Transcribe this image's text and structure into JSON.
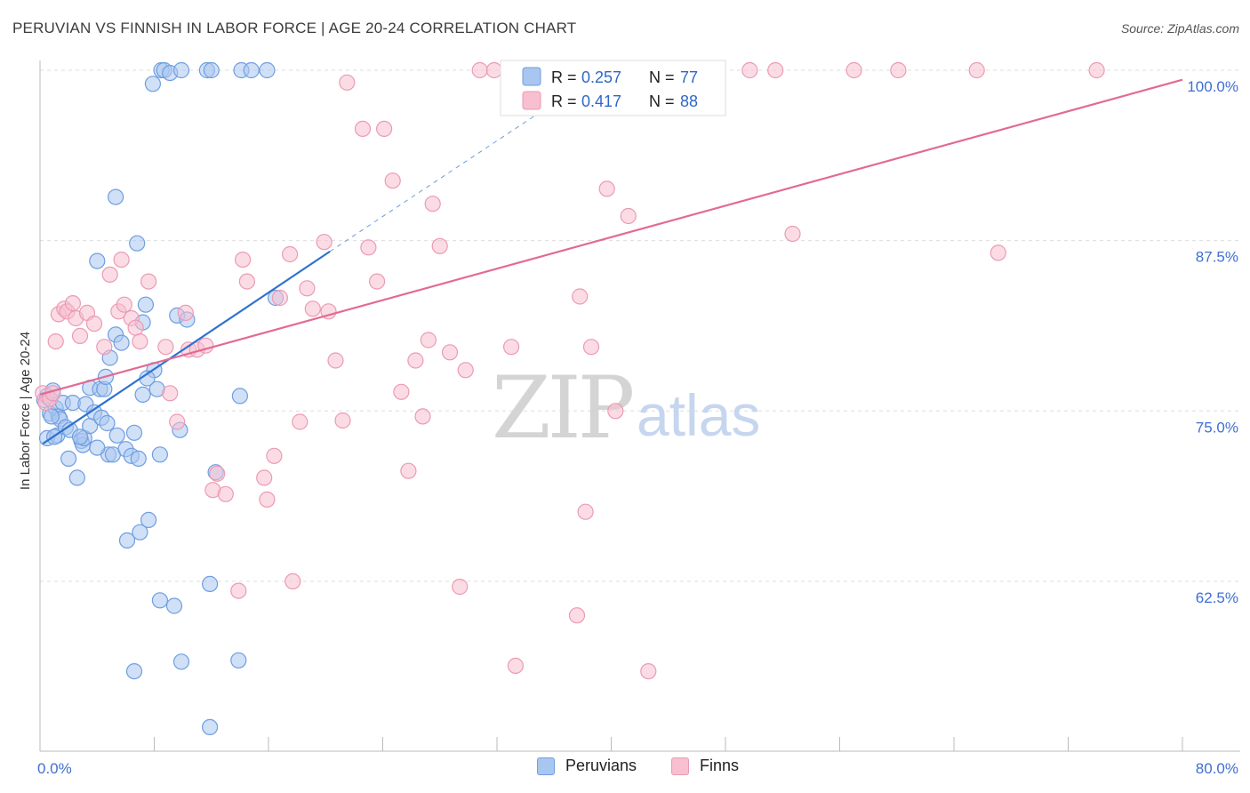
{
  "title": "PERUVIAN VS FINNISH IN LABOR FORCE | AGE 20-24 CORRELATION CHART",
  "source": "Source: ZipAtlas.com",
  "watermark": {
    "zip": "ZIP",
    "atlas": "atlas"
  },
  "legend_top": [
    {
      "r_label": "R =",
      "r_value": "0.257",
      "n_label": "N =",
      "n_value": "77"
    },
    {
      "r_label": "R =",
      "r_value": "0.417",
      "n_label": "N =",
      "n_value": "88"
    }
  ],
  "legend_bottom": [
    {
      "label": "Peruvians"
    },
    {
      "label": "Finns"
    }
  ],
  "colors": {
    "peruvian_fill": "#a9c6f0",
    "peruvian_stroke": "#6f9ee0",
    "peruvian_line": "#2f72d0",
    "finn_fill": "#f7bfd0",
    "finn_stroke": "#eb9ab5",
    "finn_line": "#e26a92",
    "tick": "#3f6fd0",
    "grid": "#dddddd"
  },
  "chart_data": {
    "type": "scatter",
    "title": "PERUVIAN VS FINNISH IN LABOR FORCE | AGE 20-24 CORRELATION CHART",
    "xlabel": "",
    "ylabel": "In Labor Force | Age 20-24",
    "xlim": [
      0,
      80
    ],
    "ylim": [
      51.8,
      101.5
    ],
    "x_tick_labels": [
      "0.0%",
      "80.0%"
    ],
    "y_ticks": [
      62.5,
      75.0,
      87.5,
      100.0
    ],
    "y_tick_labels": [
      "62.5%",
      "75.0%",
      "87.5%",
      "100.0%"
    ],
    "grid": true,
    "series": [
      {
        "name": "Peruvians",
        "r": 0.257,
        "n": 77,
        "trend": {
          "x0": 0.2,
          "y0": 72.6,
          "x1": 20.3,
          "y1": 86.7,
          "dash_to_x": 36.0,
          "dash_to_y": 97.6
        },
        "points": [
          [
            0.3,
            75.8
          ],
          [
            0.5,
            76.1
          ],
          [
            0.5,
            73.0
          ],
          [
            0.7,
            74.8
          ],
          [
            0.9,
            76.5
          ],
          [
            1.1,
            75.2
          ],
          [
            1.2,
            73.2
          ],
          [
            1.3,
            74.6
          ],
          [
            1.4,
            74.4
          ],
          [
            1.6,
            75.6
          ],
          [
            1.8,
            73.8
          ],
          [
            2.0,
            71.5
          ],
          [
            2.1,
            73.6
          ],
          [
            2.3,
            75.6
          ],
          [
            2.6,
            70.1
          ],
          [
            2.9,
            72.8
          ],
          [
            3.0,
            72.5
          ],
          [
            3.1,
            73.0
          ],
          [
            3.2,
            75.5
          ],
          [
            3.5,
            73.9
          ],
          [
            3.5,
            76.7
          ],
          [
            3.8,
            74.9
          ],
          [
            4.0,
            86.0
          ],
          [
            4.2,
            76.6
          ],
          [
            4.3,
            74.5
          ],
          [
            4.5,
            76.6
          ],
          [
            4.6,
            77.5
          ],
          [
            4.7,
            74.1
          ],
          [
            4.8,
            71.8
          ],
          [
            4.9,
            78.9
          ],
          [
            5.1,
            71.8
          ],
          [
            5.3,
            80.6
          ],
          [
            5.3,
            90.7
          ],
          [
            5.4,
            73.2
          ],
          [
            5.7,
            80.0
          ],
          [
            6.0,
            72.2
          ],
          [
            6.1,
            65.5
          ],
          [
            6.4,
            71.7
          ],
          [
            6.6,
            73.4
          ],
          [
            6.8,
            87.3
          ],
          [
            6.9,
            71.5
          ],
          [
            7.0,
            66.1
          ],
          [
            7.2,
            76.2
          ],
          [
            7.2,
            81.5
          ],
          [
            7.4,
            82.8
          ],
          [
            7.6,
            67.0
          ],
          [
            7.9,
            99.0
          ],
          [
            8.0,
            78.0
          ],
          [
            8.2,
            76.6
          ],
          [
            8.4,
            71.8
          ],
          [
            8.4,
            61.1
          ],
          [
            8.5,
            100.0
          ],
          [
            8.7,
            100.0
          ],
          [
            9.1,
            99.8
          ],
          [
            9.4,
            60.7
          ],
          [
            9.6,
            82.0
          ],
          [
            9.8,
            73.6
          ],
          [
            9.9,
            56.6
          ],
          [
            9.9,
            100.0
          ],
          [
            10.3,
            81.7
          ],
          [
            11.7,
            100.0
          ],
          [
            11.9,
            62.3
          ],
          [
            12.0,
            100.0
          ],
          [
            12.3,
            70.5
          ],
          [
            13.9,
            56.7
          ],
          [
            14.0,
            76.1
          ],
          [
            14.1,
            100.0
          ],
          [
            14.8,
            100.0
          ],
          [
            15.9,
            100.0
          ],
          [
            16.5,
            83.3
          ],
          [
            6.6,
            55.9
          ],
          [
            11.9,
            51.8
          ],
          [
            0.8,
            74.6
          ],
          [
            1.0,
            73.1
          ],
          [
            2.8,
            73.1
          ],
          [
            4.0,
            72.3
          ],
          [
            7.5,
            77.4
          ]
        ]
      },
      {
        "name": "Finns",
        "r": 0.417,
        "n": 88,
        "trend": {
          "x0": 0.0,
          "y0": 76.2,
          "x1": 80.0,
          "y1": 99.3
        },
        "points": [
          [
            0.2,
            76.3
          ],
          [
            0.4,
            75.6
          ],
          [
            0.7,
            75.9
          ],
          [
            0.9,
            76.3
          ],
          [
            1.1,
            80.1
          ],
          [
            1.3,
            82.1
          ],
          [
            1.7,
            82.5
          ],
          [
            1.9,
            82.3
          ],
          [
            2.3,
            82.9
          ],
          [
            2.5,
            81.8
          ],
          [
            2.8,
            80.5
          ],
          [
            3.3,
            82.2
          ],
          [
            3.8,
            81.4
          ],
          [
            4.5,
            79.7
          ],
          [
            4.9,
            85.0
          ],
          [
            5.5,
            82.3
          ],
          [
            5.7,
            86.1
          ],
          [
            5.9,
            82.8
          ],
          [
            6.4,
            81.8
          ],
          [
            6.7,
            81.1
          ],
          [
            7.0,
            80.1
          ],
          [
            7.6,
            84.5
          ],
          [
            8.8,
            79.7
          ],
          [
            9.1,
            76.3
          ],
          [
            9.6,
            74.2
          ],
          [
            10.2,
            82.2
          ],
          [
            10.4,
            79.5
          ],
          [
            11.0,
            79.5
          ],
          [
            11.6,
            79.8
          ],
          [
            12.1,
            69.2
          ],
          [
            12.4,
            70.4
          ],
          [
            13.0,
            68.9
          ],
          [
            13.9,
            61.8
          ],
          [
            14.2,
            86.1
          ],
          [
            14.5,
            84.5
          ],
          [
            15.7,
            70.1
          ],
          [
            15.9,
            68.5
          ],
          [
            16.4,
            71.7
          ],
          [
            16.8,
            83.3
          ],
          [
            17.5,
            86.5
          ],
          [
            17.7,
            62.5
          ],
          [
            18.2,
            74.2
          ],
          [
            18.7,
            84.0
          ],
          [
            19.1,
            82.5
          ],
          [
            19.9,
            87.4
          ],
          [
            20.2,
            82.3
          ],
          [
            20.7,
            78.7
          ],
          [
            21.2,
            74.3
          ],
          [
            21.5,
            99.1
          ],
          [
            22.6,
            95.7
          ],
          [
            23.0,
            87.0
          ],
          [
            23.6,
            84.5
          ],
          [
            24.1,
            95.7
          ],
          [
            24.7,
            91.9
          ],
          [
            25.3,
            76.4
          ],
          [
            25.8,
            70.6
          ],
          [
            26.3,
            78.7
          ],
          [
            26.8,
            74.6
          ],
          [
            27.2,
            80.2
          ],
          [
            27.5,
            90.2
          ],
          [
            28.0,
            87.1
          ],
          [
            28.7,
            79.3
          ],
          [
            29.4,
            62.1
          ],
          [
            29.8,
            78.0
          ],
          [
            30.8,
            100.0
          ],
          [
            31.8,
            100.0
          ],
          [
            33.0,
            79.7
          ],
          [
            33.3,
            56.3
          ],
          [
            34.6,
            100.0
          ],
          [
            35.8,
            100.0
          ],
          [
            37.6,
            60.0
          ],
          [
            37.8,
            83.4
          ],
          [
            38.2,
            67.6
          ],
          [
            38.6,
            79.7
          ],
          [
            39.7,
            91.3
          ],
          [
            40.3,
            75.0
          ],
          [
            41.2,
            89.3
          ],
          [
            42.6,
            55.9
          ],
          [
            43.4,
            100.0
          ],
          [
            44.0,
            100.0
          ],
          [
            49.7,
            100.0
          ],
          [
            51.5,
            100.0
          ],
          [
            52.7,
            88.0
          ],
          [
            57.0,
            100.0
          ],
          [
            60.1,
            100.0
          ],
          [
            65.6,
            100.0
          ],
          [
            67.1,
            86.6
          ],
          [
            74.0,
            100.0
          ]
        ]
      }
    ]
  }
}
